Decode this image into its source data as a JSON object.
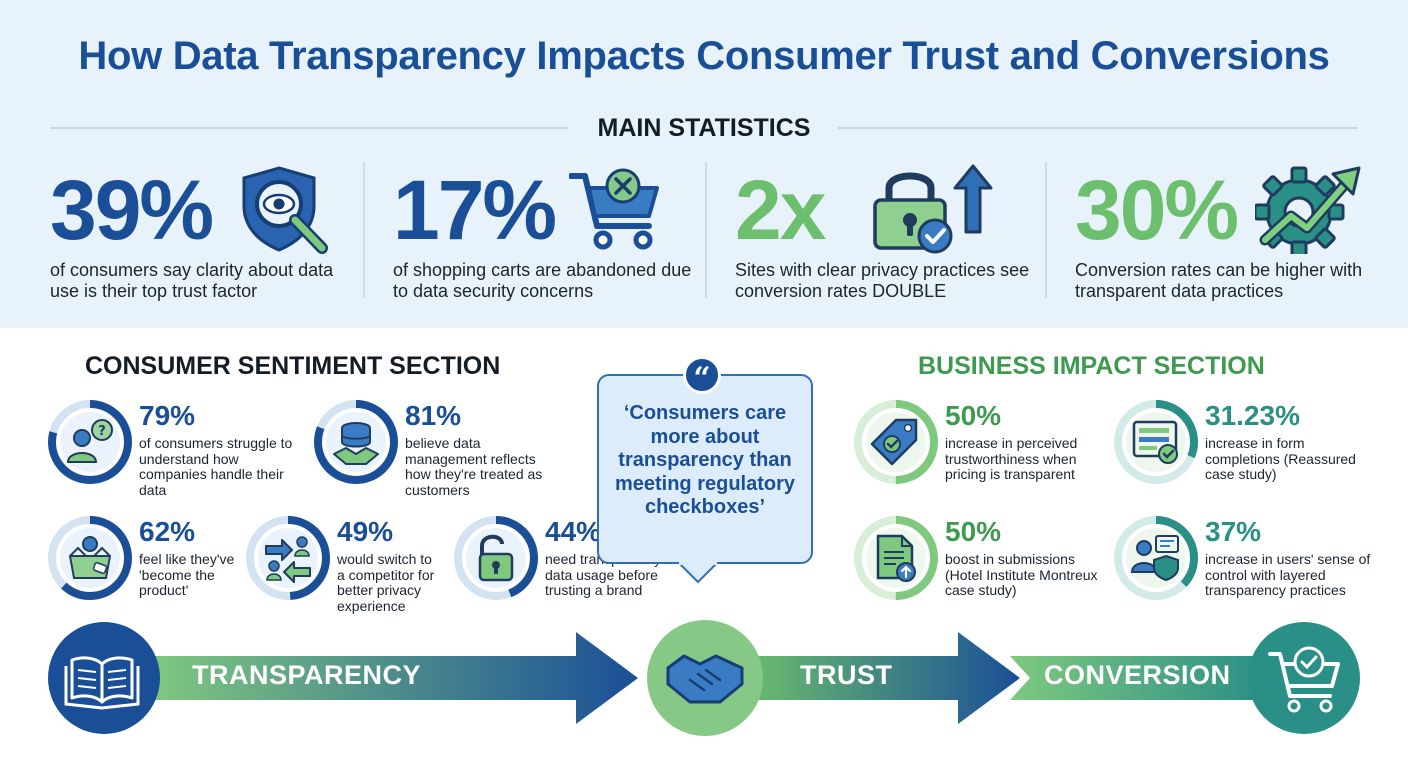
{
  "title": "How Data Transparency Impacts Consumer Trust and Conversions",
  "main_statistics": {
    "heading": "MAIN STATISTICS",
    "items": [
      {
        "value": "39%",
        "text": "of consumers say clarity about data use is their top trust factor",
        "icon": "shield-eye-magnifier-icon",
        "color": "#1a4f97"
      },
      {
        "value": "17%",
        "text": "of shopping carts are abandoned due to data security concerns",
        "icon": "cart-x-icon",
        "color": "#1a4f97"
      },
      {
        "value": "2x",
        "text": "Sites with clear privacy practices see conversion rates DOUBLE",
        "icon": "lock-arrow-up-icon",
        "color": "#6cbf6c"
      },
      {
        "value": "30%",
        "text": "Conversion rates can be higher with transparent data practices",
        "icon": "gear-growth-arrow-icon",
        "color": "#6cbf6c"
      }
    ]
  },
  "consumer_sentiment": {
    "heading": "CONSUMER SENTIMENT SECTION",
    "items": [
      {
        "value": "79%",
        "percent": 79,
        "text": "of consumers struggle to understand how companies handle their data",
        "icon": "person-question-icon"
      },
      {
        "value": "81%",
        "percent": 81,
        "text": "believe data management reflects how they're treated as customers",
        "icon": "database-handshake-icon"
      },
      {
        "value": "62%",
        "percent": 62,
        "text": "feel like they've 'become the product'",
        "icon": "person-in-box-icon"
      },
      {
        "value": "49%",
        "percent": 49,
        "text": "would switch to a competitor for better privacy experience",
        "icon": "switch-arrows-icon"
      },
      {
        "value": "44%",
        "percent": 44,
        "text": "need transparency about data usage before trusting a brand",
        "icon": "unlocked-padlock-icon"
      }
    ]
  },
  "quote": {
    "text": "‘Consumers care more about transparency than meeting regulatory checkboxes’",
    "icon": "quote-icon"
  },
  "business_impact": {
    "heading": "BUSINESS IMPACT SECTION",
    "items": [
      {
        "value": "50%",
        "percent": 50,
        "text": "increase in perceived trustworthiness when pricing is transparent",
        "icon": "price-tag-check-icon"
      },
      {
        "value": "31.23%",
        "percent": 31.23,
        "text": "increase in form completions (Reassured case study)",
        "icon": "form-check-icon"
      },
      {
        "value": "50%",
        "percent": 50,
        "text": "boost in submissions (Hotel Institute Montreux case study)",
        "icon": "document-upload-icon"
      },
      {
        "value": "37%",
        "percent": 37,
        "text": "increase in users' sense of control with layered transparency practices",
        "icon": "person-shield-icon"
      }
    ]
  },
  "flow": {
    "steps": [
      "TRANSPARENCY",
      "TRUST",
      "CONVERSION"
    ],
    "icons": [
      "open-book-icon",
      "handshake-icon",
      "cart-check-icon"
    ]
  },
  "colors": {
    "brand_blue": "#1a4f97",
    "brand_green": "#6cbf6c",
    "teal": "#2a8f86",
    "background_band": "#e8f2fb"
  }
}
